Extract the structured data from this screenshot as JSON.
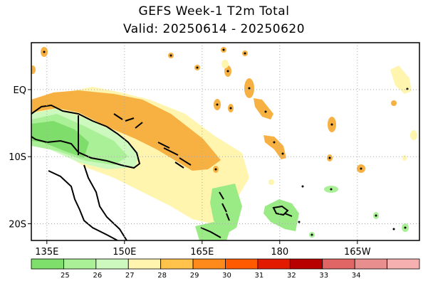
{
  "title": "GEFS Week-1 T2m Total",
  "subtitle": "Valid: 20250614 - 20250620",
  "map": {
    "lon_range": [
      132,
      207
    ],
    "lat_range": [
      -22.5,
      7
    ],
    "lat_labels": [
      {
        "lat": 0,
        "text": "EQ"
      },
      {
        "lat": -10,
        "text": "10S"
      },
      {
        "lat": -20,
        "text": "20S"
      }
    ],
    "lon_labels": [
      {
        "lon": 135,
        "text": "135E"
      },
      {
        "lon": 150,
        "text": "150E"
      },
      {
        "lon": 165,
        "text": "165E"
      },
      {
        "lon": 180,
        "text": "180"
      },
      {
        "lon": 195,
        "text": "165W"
      }
    ],
    "grid": true
  },
  "colorbar": {
    "colors": [
      "#7ee06a",
      "#aaf097",
      "#cdf9bf",
      "#fff5ae",
      "#ffc24b",
      "#ff8a1c",
      "#ff5a00",
      "#e21a00",
      "#b80000",
      "#e06565",
      "#e88e8e",
      "#f7b0b0"
    ],
    "labels": [
      "25",
      "26",
      "27",
      "28",
      "29",
      "30",
      "31",
      "32",
      "33",
      "34"
    ]
  },
  "colors": {
    "orange": "#f7b143",
    "yellow": "#fff5ae",
    "light_green": "#cdf9bf",
    "green": "#9aeb85",
    "deep_green": "#7fde6b"
  }
}
